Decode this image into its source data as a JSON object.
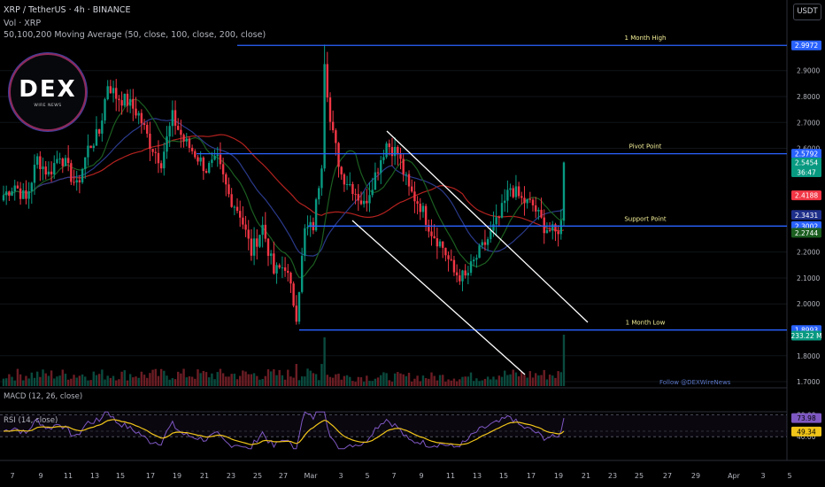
{
  "header": {
    "title": "XRP / TetherUS · 4h · BINANCE",
    "volume": "Vol · XRP",
    "ma": "50,100,200 Moving Average (50, close, 100, close, 200, close)"
  },
  "currency_button": "USDT",
  "logo": {
    "main": "DEX",
    "sub": "WIRE NEWS"
  },
  "watermark": "Follow @DEXWireNews",
  "macd_label": "MACD (12, 26, close)",
  "rsi_label": "RSI (14, close)",
  "colors": {
    "bg": "#000000",
    "up": "#089981",
    "down": "#f23645",
    "level": "#2962ff",
    "channel": "#ffffff",
    "level_text": "#f5f098",
    "ma50": "#1b5e20",
    "ma100": "#2a3a8a",
    "ma200": "#b2221f",
    "rsi": "#7e57c2",
    "rsi_ma": "#f0c419"
  },
  "chart_data": {
    "type": "candlestick",
    "y_ticks": [
      "2.9000",
      "2.8000",
      "2.7000",
      "2.6000",
      "2.2000",
      "2.1000",
      "2.0000",
      "1.8000",
      "1.7000"
    ],
    "x_ticks": [
      "7",
      "9",
      "11",
      "13",
      "15",
      "17",
      "19",
      "21",
      "23",
      "25",
      "27",
      "Mar",
      "3",
      "5",
      "7",
      "9",
      "11",
      "13",
      "15",
      "17",
      "19",
      "21",
      "23",
      "25",
      "27",
      "29",
      "Apr",
      "3",
      "5"
    ],
    "levels": [
      {
        "name": "1 Month High",
        "value": 2.9972
      },
      {
        "name": "Pivot Point",
        "value": 2.5792
      },
      {
        "name": "Support Point",
        "value": 2.3002
      },
      {
        "name": "1 Month Low",
        "value": 1.8993
      }
    ],
    "price_tags": [
      {
        "text": "2.9972",
        "value": 2.9972,
        "color": "#2962ff"
      },
      {
        "text": "2.5792",
        "value": 2.5792,
        "color": "#2962ff"
      },
      {
        "text": "2.5454",
        "sub": "36:47",
        "value": 2.5454,
        "color": "#089981"
      },
      {
        "text": "2.4188",
        "value": 2.4188,
        "color": "#f23645"
      },
      {
        "text": "2.3431",
        "value": 2.3431,
        "color": "#1e2f8a"
      },
      {
        "text": "2.3002",
        "value": 2.3002,
        "color": "#2962ff"
      },
      {
        "text": "2.2744",
        "value": 2.2744,
        "color": "#1b5e20"
      },
      {
        "text": "1.8993",
        "value": 1.8993,
        "color": "#2962ff"
      },
      {
        "text": "233.22 M",
        "color": "#089981"
      }
    ],
    "rsi_ticks": [
      "80.00",
      "40.00"
    ],
    "rsi_tags": [
      {
        "text": "73.98",
        "value": 73.98,
        "color": "#7e57c2"
      },
      {
        "text": "49.34",
        "value": 49.34,
        "color": "#f0c419"
      }
    ],
    "price_anchors": [
      [
        0,
        2.42
      ],
      [
        4,
        2.46
      ],
      [
        8,
        2.4
      ],
      [
        12,
        2.56
      ],
      [
        16,
        2.5
      ],
      [
        20,
        2.58
      ],
      [
        26,
        2.45
      ],
      [
        30,
        2.6
      ],
      [
        34,
        2.66
      ],
      [
        37,
        2.85
      ],
      [
        40,
        2.8
      ],
      [
        44,
        2.78
      ],
      [
        48,
        2.73
      ],
      [
        52,
        2.62
      ],
      [
        56,
        2.55
      ],
      [
        60,
        2.72
      ],
      [
        64,
        2.63
      ],
      [
        68,
        2.58
      ],
      [
        72,
        2.52
      ],
      [
        76,
        2.55
      ],
      [
        80,
        2.42
      ],
      [
        84,
        2.35
      ],
      [
        88,
        2.2
      ],
      [
        92,
        2.3
      ],
      [
        96,
        2.12
      ],
      [
        100,
        2.15
      ],
      [
        104,
        1.96
      ],
      [
        107,
        2.28
      ],
      [
        110,
        2.3
      ],
      [
        113,
        2.55
      ],
      [
        114,
        2.95
      ],
      [
        116,
        2.7
      ],
      [
        120,
        2.5
      ],
      [
        124,
        2.45
      ],
      [
        128,
        2.38
      ],
      [
        132,
        2.5
      ],
      [
        136,
        2.62
      ],
      [
        140,
        2.58
      ],
      [
        144,
        2.44
      ],
      [
        148,
        2.38
      ],
      [
        152,
        2.28
      ],
      [
        156,
        2.22
      ],
      [
        160,
        2.12
      ],
      [
        164,
        2.1
      ],
      [
        168,
        2.18
      ],
      [
        172,
        2.25
      ],
      [
        176,
        2.33
      ],
      [
        180,
        2.45
      ],
      [
        184,
        2.4
      ],
      [
        188,
        2.38
      ],
      [
        192,
        2.3
      ],
      [
        196,
        2.27
      ],
      [
        198,
        2.31
      ],
      [
        199,
        2.5454
      ]
    ],
    "channel": [
      [
        [
          398,
          249
        ],
        [
          593,
          423
        ]
      ],
      [
        [
          437,
          148
        ],
        [
          664,
          364
        ]
      ]
    ],
    "x_range": [
      0,
      199
    ]
  }
}
